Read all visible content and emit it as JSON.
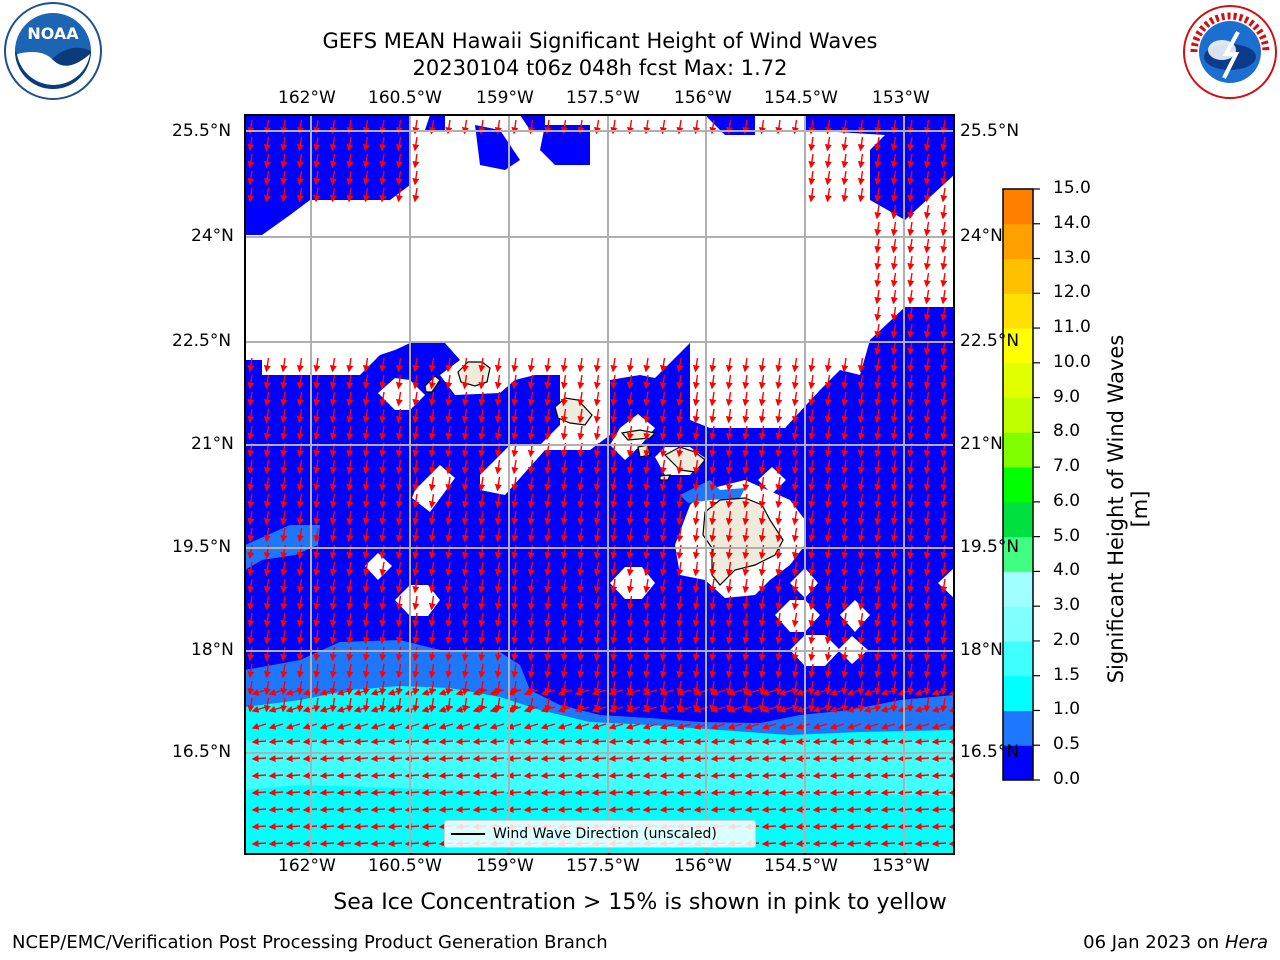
{
  "title": {
    "line1": "GEFS MEAN Hawaii Significant Height of Wind Waves",
    "line2": "20230104 t06z 048h fcst   Max: 1.72"
  },
  "logos": {
    "noaa_text": "NOAA",
    "noaa_ring_text": "NATIONAL OCEANIC AND ATMOSPHERIC ADMINISTRATION · U.S. DEPARTMENT OF COMMERCE",
    "nws_ring_text": "NATIONAL WEATHER SERVICE"
  },
  "map": {
    "lon_labels": [
      "162°W",
      "160.5°W",
      "159°W",
      "157.5°W",
      "156°W",
      "154.5°W",
      "153°W"
    ],
    "lat_labels_left": [
      "25.5°N",
      "24°N",
      "22.5°N",
      "21°N",
      "19.5°N",
      "18°N",
      "16.5°N"
    ],
    "lat_labels_right": [
      "25.5°N",
      "24°N",
      "22.5°N",
      "21°N",
      "19.5°N",
      "18°N",
      "16.5°N"
    ],
    "legend_label": "Wind Wave Direction (unscaled)",
    "arrow_color": "#ff0000",
    "land_color": "#efebdc",
    "background_field_color": "#0000ff"
  },
  "colorbar": {
    "label": "Significant Height of Wind Waves [m]",
    "ticks": [
      "15.0",
      "14.0",
      "13.0",
      "12.0",
      "11.0",
      "10.0",
      "9.0",
      "8.0",
      "7.0",
      "6.0",
      "5.0",
      "4.0",
      "3.0",
      "2.0",
      "1.5",
      "1.0",
      "0.5",
      "0.0"
    ],
    "colors": [
      "#0000ff",
      "#1e78ff",
      "#00ffff",
      "#40ffff",
      "#80ffff",
      "#a0ffff",
      "#40ff80",
      "#00e040",
      "#00ff00",
      "#80ff00",
      "#c0ff00",
      "#e0ff00",
      "#ffff00",
      "#ffe000",
      "#ffc000",
      "#ffa000",
      "#ff8000",
      "#ff6000",
      "#ff4000",
      "#ff2000",
      "#ff0000"
    ]
  },
  "footnote": "Sea Ice Concentration > 15% is shown in pink to yellow",
  "credit": "NCEP/EMC/Verification Post Processing Product Generation Branch",
  "date": {
    "text": "06 Jan 2023 on ",
    "machine": "Hera"
  }
}
